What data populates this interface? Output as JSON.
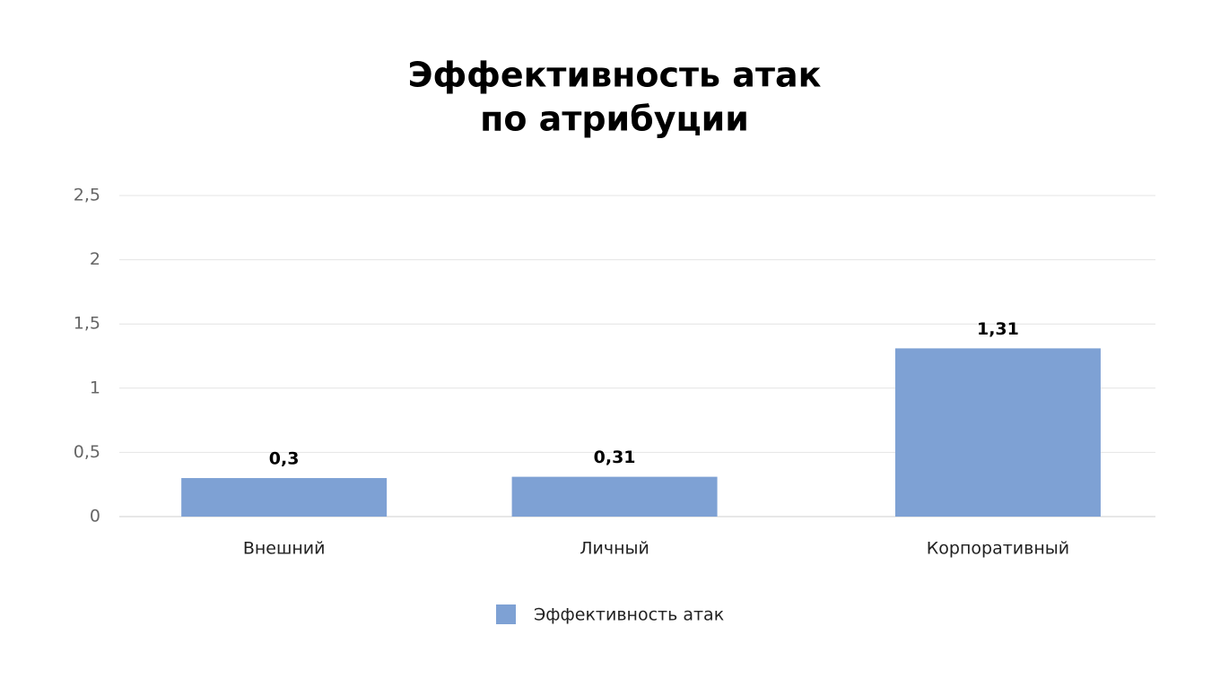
{
  "chart_data": {
    "type": "bar",
    "title": [
      "Эффективность атак",
      "по атрибуции"
    ],
    "categories": [
      "Внешний",
      "Личный",
      "Корпоративный"
    ],
    "series": [
      {
        "name": "Эффективность атак",
        "color": "#7ea1d4",
        "values": [
          0.3,
          0.31,
          1.31
        ],
        "value_labels": [
          "0,3",
          "0,31",
          "1,31"
        ]
      }
    ],
    "ylim": [
      0,
      2.5
    ],
    "yticks": [
      0,
      {
        "value": 0.5,
        "label": "0,5"
      },
      1,
      {
        "value": 1.5,
        "label": "1,5"
      },
      2,
      {
        "value": 2.5,
        "label": "2,5"
      }
    ],
    "grid": true,
    "legend": "bottom"
  }
}
